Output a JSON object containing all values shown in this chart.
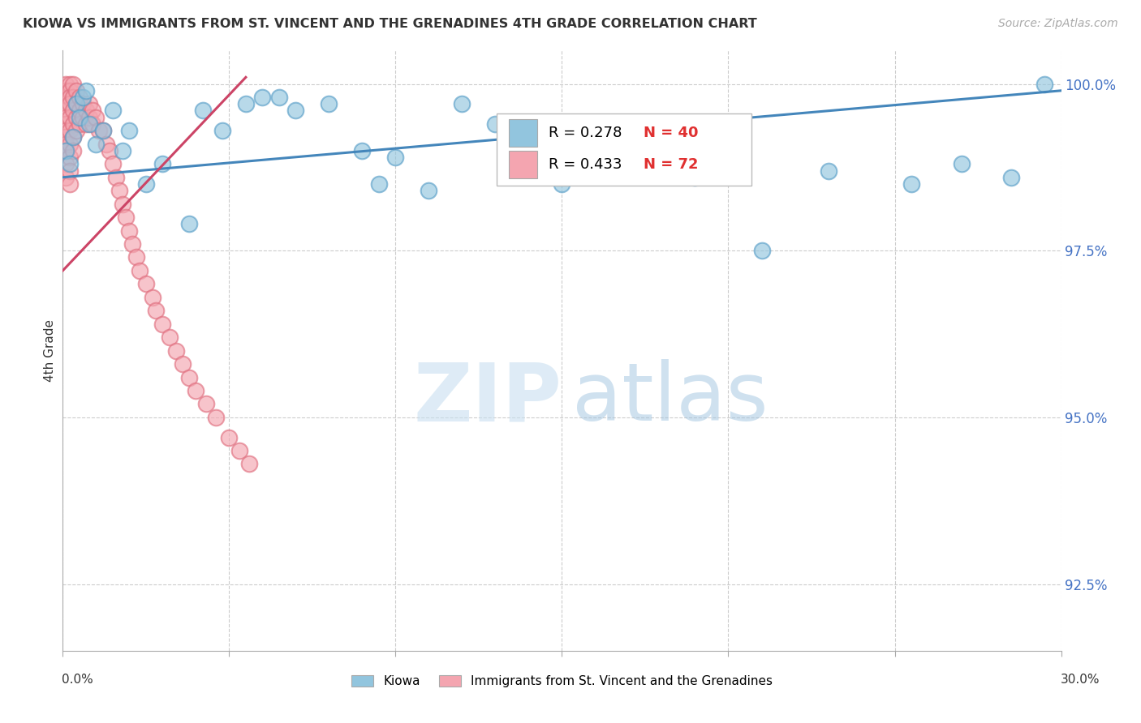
{
  "title": "KIOWA VS IMMIGRANTS FROM ST. VINCENT AND THE GRENADINES 4TH GRADE CORRELATION CHART",
  "source": "Source: ZipAtlas.com",
  "ylabel": "4th Grade",
  "x_min": 0.0,
  "x_max": 0.3,
  "y_min": 0.915,
  "y_max": 1.005,
  "yticks": [
    0.925,
    0.95,
    0.975,
    1.0
  ],
  "ytick_labels": [
    "92.5%",
    "95.0%",
    "97.5%",
    "100.0%"
  ],
  "blue_color": "#92c5de",
  "pink_color": "#f4a5b0",
  "blue_edge": "#5a9fc8",
  "pink_edge": "#e07080",
  "line_blue": "#4486bb",
  "line_pink": "#cc4466",
  "blue_line_x": [
    0.0,
    0.3
  ],
  "blue_line_y": [
    0.986,
    0.999
  ],
  "pink_line_x": [
    0.0,
    0.055
  ],
  "pink_line_y": [
    0.972,
    1.001
  ],
  "kiowa_x": [
    0.001,
    0.002,
    0.003,
    0.004,
    0.005,
    0.006,
    0.007,
    0.008,
    0.01,
    0.012,
    0.015,
    0.018,
    0.02,
    0.025,
    0.03,
    0.038,
    0.042,
    0.048,
    0.055,
    0.06,
    0.065,
    0.07,
    0.08,
    0.09,
    0.095,
    0.1,
    0.11,
    0.12,
    0.13,
    0.15,
    0.16,
    0.175,
    0.19,
    0.2,
    0.21,
    0.23,
    0.255,
    0.27,
    0.285,
    0.295
  ],
  "kiowa_y": [
    0.99,
    0.988,
    0.992,
    0.997,
    0.995,
    0.998,
    0.999,
    0.994,
    0.991,
    0.993,
    0.996,
    0.99,
    0.993,
    0.985,
    0.988,
    0.979,
    0.996,
    0.993,
    0.997,
    0.998,
    0.998,
    0.996,
    0.997,
    0.99,
    0.985,
    0.989,
    0.984,
    0.997,
    0.994,
    0.985,
    0.988,
    0.991,
    0.986,
    0.99,
    0.975,
    0.987,
    0.985,
    0.988,
    0.986,
    1.0
  ],
  "svg_x": [
    0.001,
    0.001,
    0.001,
    0.001,
    0.001,
    0.001,
    0.001,
    0.001,
    0.001,
    0.001,
    0.001,
    0.001,
    0.001,
    0.002,
    0.002,
    0.002,
    0.002,
    0.002,
    0.002,
    0.002,
    0.002,
    0.002,
    0.002,
    0.003,
    0.003,
    0.003,
    0.003,
    0.003,
    0.003,
    0.004,
    0.004,
    0.004,
    0.004,
    0.005,
    0.005,
    0.005,
    0.006,
    0.006,
    0.007,
    0.007,
    0.008,
    0.008,
    0.009,
    0.009,
    0.01,
    0.011,
    0.012,
    0.013,
    0.014,
    0.015,
    0.016,
    0.017,
    0.018,
    0.019,
    0.02,
    0.021,
    0.022,
    0.023,
    0.025,
    0.027,
    0.028,
    0.03,
    0.032,
    0.034,
    0.036,
    0.038,
    0.04,
    0.043,
    0.046,
    0.05,
    0.053,
    0.056
  ],
  "svg_y": [
    1.0,
    0.999,
    0.998,
    0.997,
    0.996,
    0.995,
    0.994,
    0.993,
    0.992,
    0.991,
    0.99,
    0.988,
    0.986,
    1.0,
    0.999,
    0.998,
    0.997,
    0.995,
    0.993,
    0.991,
    0.989,
    0.987,
    0.985,
    1.0,
    0.998,
    0.996,
    0.994,
    0.992,
    0.99,
    0.999,
    0.997,
    0.995,
    0.993,
    0.998,
    0.996,
    0.994,
    0.997,
    0.995,
    0.996,
    0.994,
    0.997,
    0.995,
    0.996,
    0.994,
    0.995,
    0.993,
    0.993,
    0.991,
    0.99,
    0.988,
    0.986,
    0.984,
    0.982,
    0.98,
    0.978,
    0.976,
    0.974,
    0.972,
    0.97,
    0.968,
    0.966,
    0.964,
    0.962,
    0.96,
    0.958,
    0.956,
    0.954,
    0.952,
    0.95,
    0.947,
    0.945,
    0.943
  ]
}
